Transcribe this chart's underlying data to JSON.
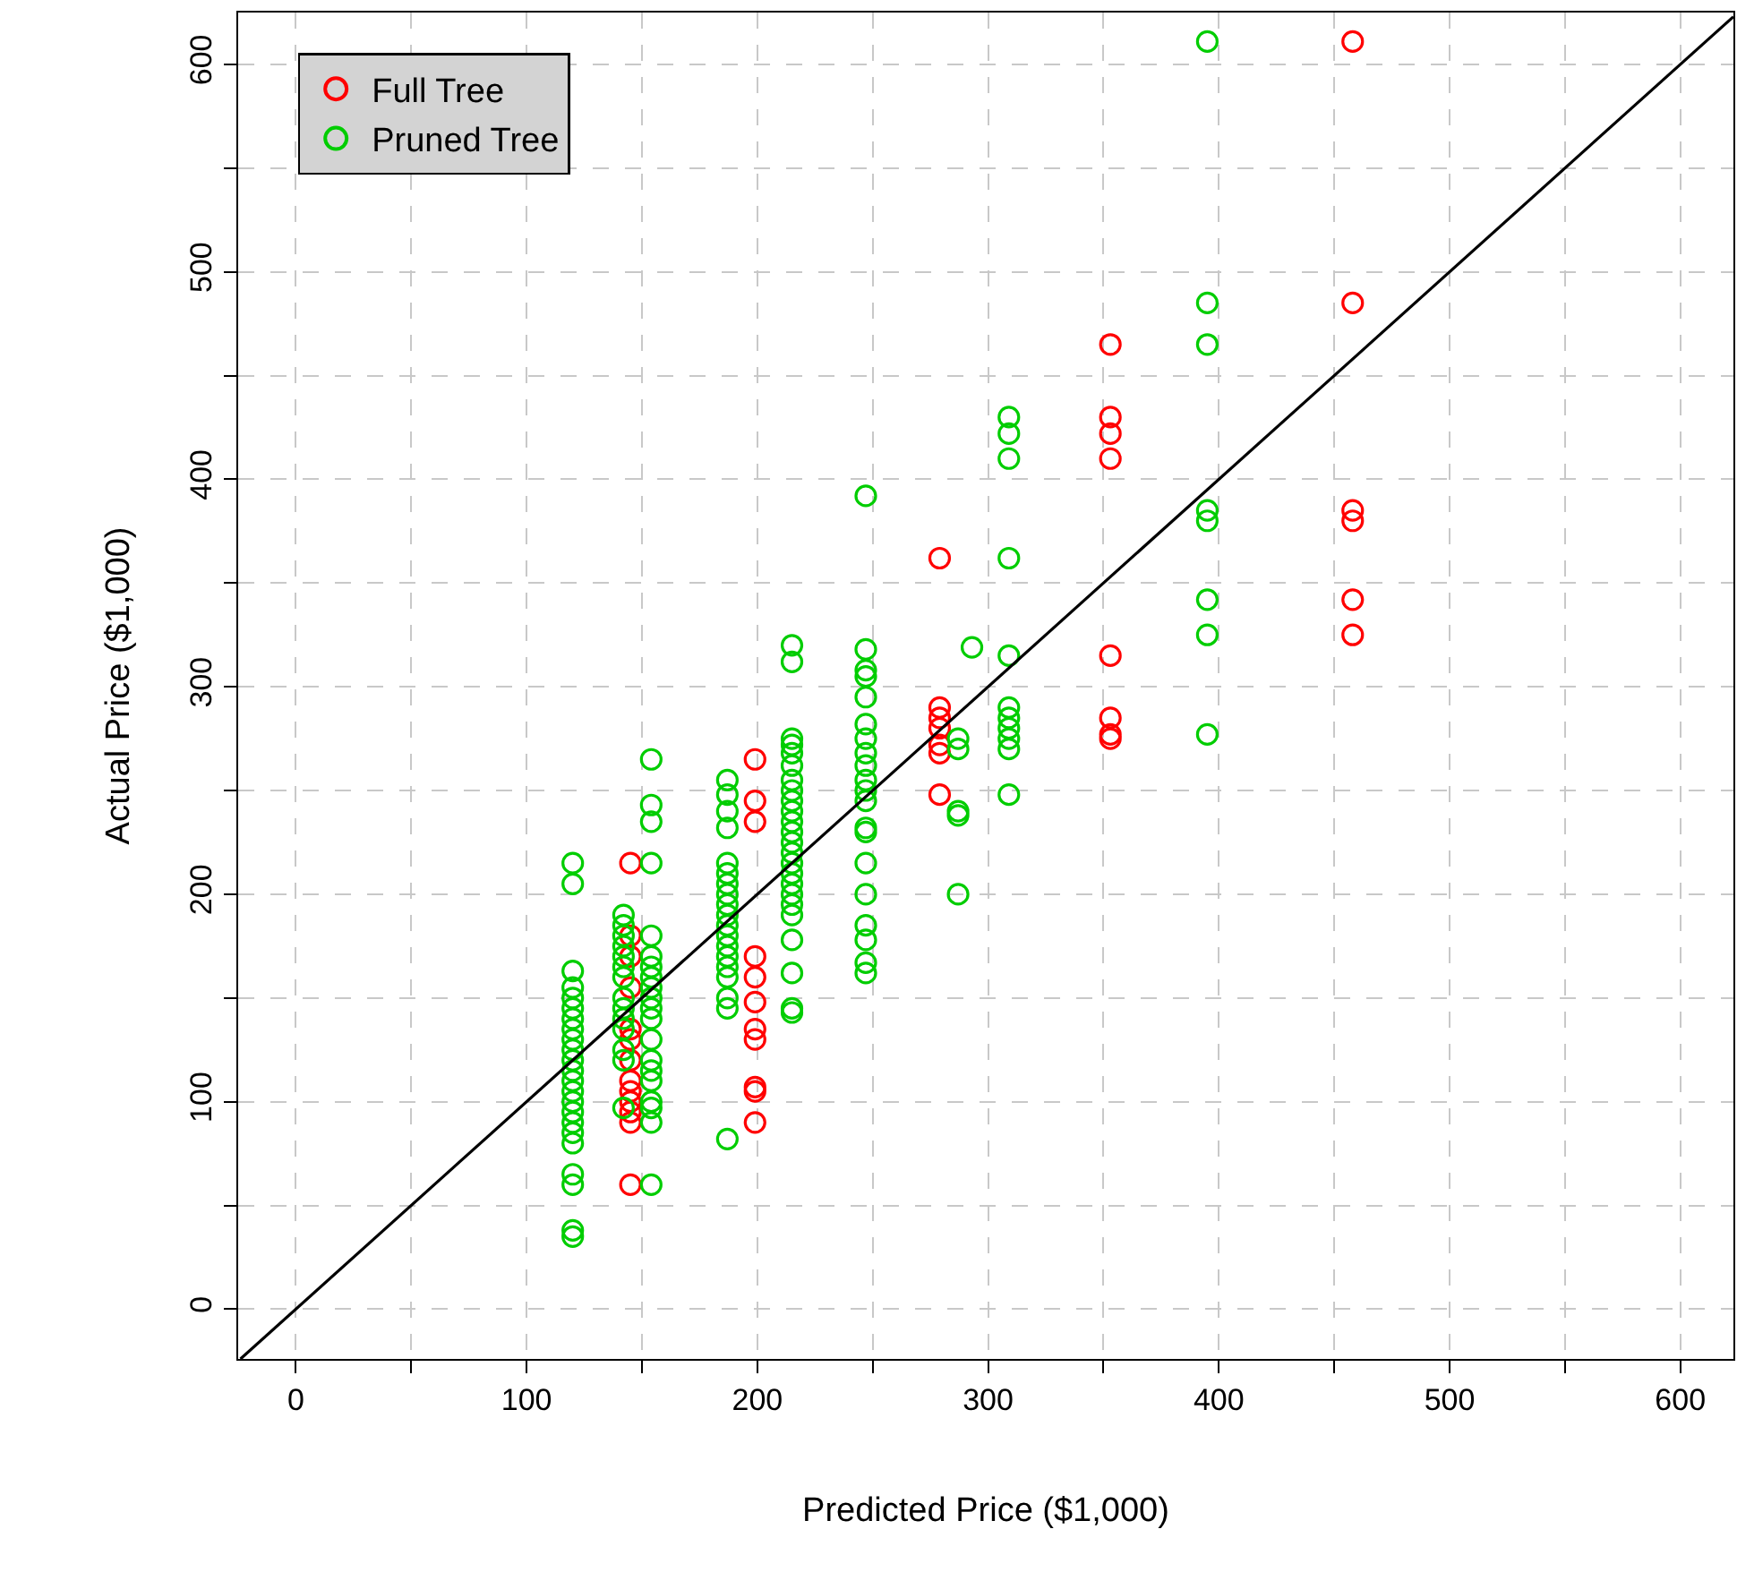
{
  "chart_data": {
    "type": "scatter",
    "xlabel": "Predicted Price ($1,000)",
    "ylabel": "Actual Price ($1,000)",
    "xlim": [
      -25,
      623
    ],
    "ylim": [
      -24,
      625
    ],
    "xticks": [
      0,
      {
        "value": 50,
        "label": null
      },
      100,
      {
        "value": 150,
        "label": null
      },
      200,
      {
        "value": 250,
        "label": null
      },
      300,
      {
        "value": 350,
        "label": null
      },
      400,
      {
        "value": 450,
        "label": null
      },
      500,
      {
        "value": 550,
        "label": null
      },
      600
    ],
    "yticks": [
      0,
      {
        "value": 50,
        "label": null
      },
      100,
      {
        "value": 150,
        "label": null
      },
      200,
      {
        "value": 250,
        "label": null
      },
      300,
      {
        "value": 350,
        "label": null
      },
      400,
      {
        "value": 450,
        "label": null
      },
      500,
      {
        "value": 550,
        "label": null
      },
      600
    ],
    "grid": true,
    "legend": "top left",
    "marker": "circle",
    "series": [
      {
        "name": "Full Tree",
        "color": "#ff0000",
        "x": [
          145,
          145,
          145,
          145,
          145,
          145,
          145,
          145,
          145,
          145,
          145,
          145,
          145,
          199,
          199,
          199,
          199,
          199,
          199,
          199,
          199,
          199,
          199,
          199,
          279,
          279,
          279,
          279,
          279,
          279,
          279,
          353,
          353,
          353,
          353,
          353,
          353,
          353,
          353,
          458,
          458,
          458,
          458,
          458,
          458
        ],
        "values": [
          215,
          180,
          170,
          155,
          135,
          130,
          120,
          110,
          105,
          100,
          95,
          90,
          60,
          265,
          245,
          235,
          170,
          160,
          148,
          135,
          130,
          107,
          105,
          90,
          362,
          290,
          285,
          280,
          272,
          268,
          248,
          465,
          430,
          422,
          410,
          315,
          285,
          277,
          275,
          611,
          485,
          385,
          380,
          342,
          325
        ]
      },
      {
        "name": "Pruned Tree",
        "color": "#00cd00",
        "x": [
          120,
          120,
          120,
          120,
          120,
          120,
          120,
          120,
          120,
          120,
          120,
          120,
          120,
          120,
          120,
          120,
          120,
          120,
          120,
          120,
          120,
          120,
          120,
          142,
          142,
          142,
          142,
          142,
          142,
          142,
          142,
          142,
          142,
          142,
          142,
          142,
          142,
          154,
          154,
          154,
          154,
          154,
          154,
          154,
          154,
          154,
          154,
          154,
          154,
          154,
          154,
          154,
          154,
          154,
          154,
          154,
          154,
          187,
          187,
          187,
          187,
          187,
          187,
          187,
          187,
          187,
          187,
          187,
          187,
          187,
          187,
          187,
          187,
          187,
          187,
          187,
          215,
          215,
          215,
          215,
          215,
          215,
          215,
          215,
          215,
          215,
          215,
          215,
          215,
          215,
          215,
          215,
          215,
          215,
          215,
          215,
          215,
          215,
          215,
          215,
          247,
          247,
          247,
          247,
          247,
          247,
          247,
          247,
          247,
          247,
          247,
          247,
          247,
          247,
          247,
          247,
          247,
          247,
          247,
          247,
          287,
          287,
          287,
          287,
          287,
          293,
          309,
          309,
          309,
          309,
          309,
          309,
          309,
          309,
          309,
          309,
          309,
          395,
          395,
          395,
          395,
          395,
          395,
          395,
          395
        ],
        "values": [
          215,
          205,
          163,
          155,
          150,
          145,
          140,
          135,
          130,
          125,
          120,
          115,
          110,
          105,
          100,
          95,
          90,
          85,
          80,
          65,
          60,
          38,
          35,
          190,
          185,
          180,
          175,
          170,
          165,
          160,
          150,
          145,
          140,
          135,
          125,
          120,
          97,
          265,
          243,
          235,
          215,
          180,
          170,
          165,
          160,
          155,
          150,
          145,
          140,
          130,
          120,
          115,
          110,
          100,
          97,
          90,
          60,
          255,
          248,
          240,
          232,
          215,
          210,
          205,
          200,
          195,
          190,
          185,
          180,
          175,
          170,
          165,
          160,
          150,
          145,
          82,
          320,
          312,
          275,
          272,
          268,
          262,
          255,
          250,
          245,
          240,
          235,
          230,
          225,
          220,
          215,
          210,
          205,
          200,
          195,
          190,
          178,
          162,
          145,
          143,
          392,
          318,
          308,
          305,
          295,
          282,
          275,
          268,
          262,
          255,
          250,
          245,
          232,
          230,
          215,
          200,
          185,
          178,
          167,
          162,
          275,
          270,
          240,
          238,
          200,
          319,
          430,
          422,
          410,
          362,
          315,
          290,
          285,
          280,
          275,
          270,
          248,
          611,
          485,
          465,
          385,
          380,
          342,
          325,
          277
        ]
      },
      {
        "type": "line",
        "color": "#000000",
        "marker": "none",
        "x": [
          -24,
          623
        ],
        "values": [
          -24,
          623
        ]
      }
    ]
  }
}
